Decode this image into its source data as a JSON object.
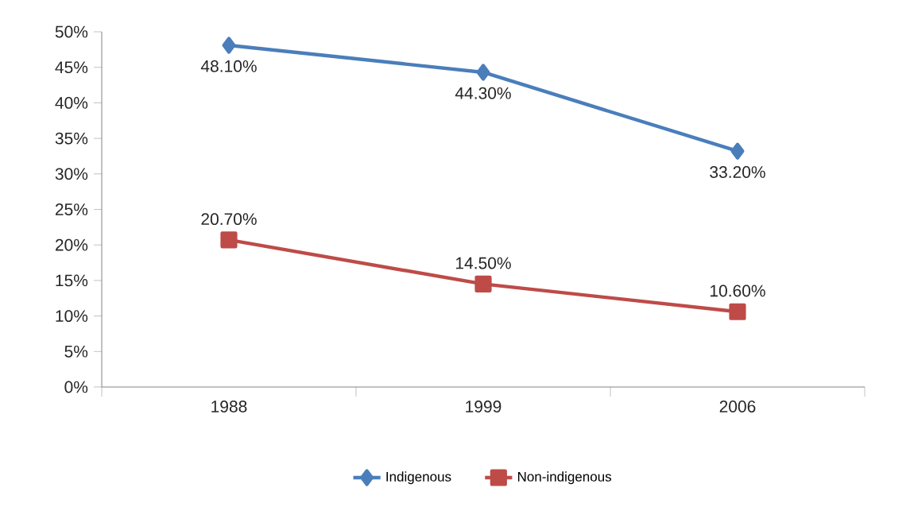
{
  "chart_data": {
    "type": "line",
    "categories": [
      "1988",
      "1999",
      "2006"
    ],
    "series": [
      {
        "name": "Indigenous",
        "color": "#4a7ebb",
        "marker": "diamond",
        "values": [
          48.1,
          44.3,
          33.2
        ],
        "value_labels": [
          "48.10%",
          "44.30%",
          "33.20%"
        ]
      },
      {
        "name": "Non-indigenous",
        "color": "#be4b48",
        "marker": "square",
        "values": [
          20.7,
          14.5,
          10.6
        ],
        "value_labels": [
          "20.70%",
          "14.50%",
          "10.60%"
        ]
      }
    ],
    "ylim": [
      0,
      50
    ],
    "yticks": [
      {
        "value": 0,
        "label": "0%"
      },
      {
        "value": 5,
        "label": "5%"
      },
      {
        "value": 10,
        "label": "10%"
      },
      {
        "value": 15,
        "label": "15%"
      },
      {
        "value": 20,
        "label": "20%"
      },
      {
        "value": 25,
        "label": "25%"
      },
      {
        "value": 30,
        "label": "30%"
      },
      {
        "value": 35,
        "label": "35%"
      },
      {
        "value": 40,
        "label": "40%"
      },
      {
        "value": 45,
        "label": "45%"
      },
      {
        "value": 50,
        "label": "50%"
      }
    ],
    "grid": false,
    "legend": "bottom"
  }
}
